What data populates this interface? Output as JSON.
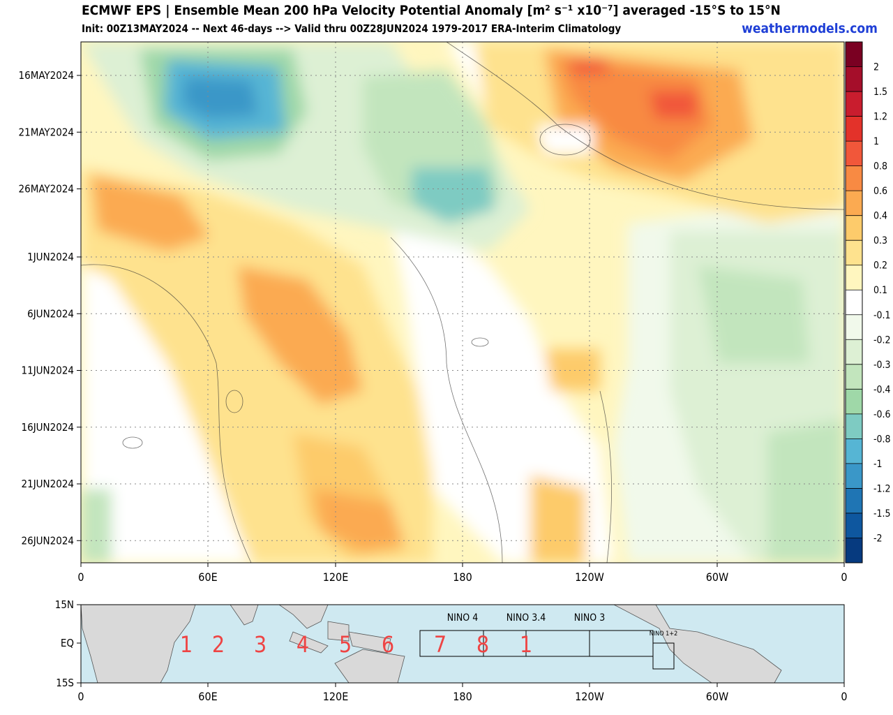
{
  "header": {
    "title": "ECMWF EPS | Ensemble Mean 200 hPa Velocity Potential Anomaly [m² s⁻¹ x10⁻⁷] averaged -15°S to 15°N",
    "subtitle": "Init: 00Z13MAY2024 -- Next 46-days --> Valid thru 00Z28JUN2024 1979-2017 ERA-Interim Climatology",
    "brand": "weathermodels.com"
  },
  "chart_data": {
    "type": "heatmap",
    "x_ticks": [
      "0",
      "60E",
      "120E",
      "180",
      "120W",
      "60W",
      "0"
    ],
    "y_ticks": [
      "16MAY2024",
      "21MAY2024",
      "26MAY2024",
      "1JUN2024",
      "6JUN2024",
      "11JUN2024",
      "16JUN2024",
      "21JUN2024",
      "26JUN2024"
    ],
    "colorbar": {
      "labels": [
        "2",
        "1.5",
        "1.2",
        "1",
        "0.8",
        "0.6",
        "0.4",
        "0.3",
        "0.2",
        "0.1",
        "-0.1",
        "-0.2",
        "-0.3",
        "-0.4",
        "-0.6",
        "-0.8",
        "-1",
        "-1.2",
        "-1.5",
        "-2"
      ],
      "colors": [
        "#7a0022",
        "#a50e2a",
        "#c91d2e",
        "#e3322a",
        "#f1573a",
        "#f88a43",
        "#fbaa51",
        "#fdcb6b",
        "#fee28e",
        "#fff6bf",
        "#ffffff",
        "#f1f9eb",
        "#ddf0d4",
        "#c2e5bd",
        "#9fd8a8",
        "#7ecbc2",
        "#56b5d4",
        "#3a97c8",
        "#1f75b4",
        "#0e579f",
        "#063a7f"
      ]
    },
    "map": {
      "lat_ticks": [
        "15N",
        "EQ",
        "15S"
      ],
      "lon_ticks": [
        "0",
        "60E",
        "120E",
        "180",
        "120W",
        "60W",
        "0"
      ],
      "nino_labels": [
        "NINO 4",
        "NINO 3.4",
        "NINO 3",
        "NINO 1+2"
      ],
      "mjo_phases": [
        "1",
        "2",
        "3",
        "4",
        "5",
        "6",
        "7",
        "8",
        "1"
      ],
      "phase_color": "#ee4444",
      "ocean_color": "#cfe9f1",
      "land_color": "#d9d9d9"
    }
  }
}
